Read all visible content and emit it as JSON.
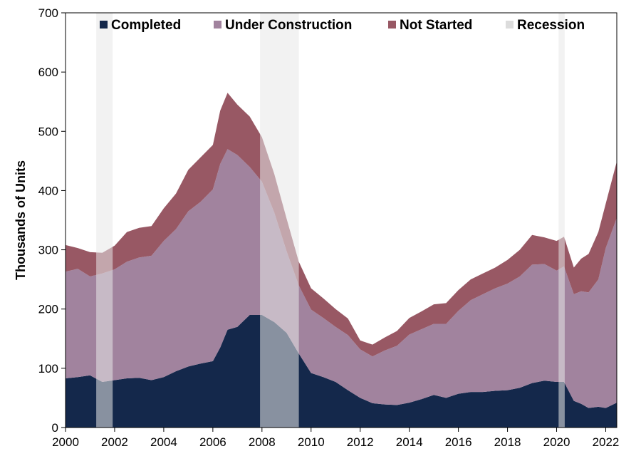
{
  "chart_data": {
    "type": "area",
    "stacked": true,
    "title": "",
    "xlabel": "",
    "ylabel": "Thousands of Units",
    "xlim": [
      2000,
      2022.45
    ],
    "ylim": [
      0,
      700
    ],
    "x_ticks": [
      2000,
      2002,
      2004,
      2006,
      2008,
      2010,
      2012,
      2014,
      2016,
      2018,
      2020,
      2022
    ],
    "y_ticks": [
      0,
      100,
      200,
      300,
      400,
      500,
      600,
      700
    ],
    "grid": false,
    "legend_position": "top",
    "x": [
      2000.0,
      2000.5,
      2001.0,
      2001.5,
      2002.0,
      2002.5,
      2003.0,
      2003.5,
      2004.0,
      2004.5,
      2005.0,
      2005.5,
      2006.0,
      2006.3,
      2006.6,
      2007.0,
      2007.5,
      2008.0,
      2008.5,
      2009.0,
      2009.5,
      2010.0,
      2010.5,
      2011.0,
      2011.5,
      2012.0,
      2012.5,
      2013.0,
      2013.5,
      2014.0,
      2014.5,
      2015.0,
      2015.5,
      2016.0,
      2016.5,
      2017.0,
      2017.5,
      2018.0,
      2018.5,
      2019.0,
      2019.5,
      2020.0,
      2020.3,
      2020.7,
      2021.0,
      2021.3,
      2021.7,
      2022.0,
      2022.45
    ],
    "series": [
      {
        "name": "Completed",
        "color": "#14284b",
        "values": [
          83,
          85,
          88,
          77,
          80,
          83,
          84,
          80,
          85,
          95,
          103,
          108,
          112,
          135,
          165,
          170,
          190,
          190,
          178,
          160,
          125,
          92,
          85,
          77,
          63,
          50,
          41,
          39,
          38,
          42,
          48,
          55,
          50,
          57,
          60,
          60,
          62,
          63,
          67,
          75,
          79,
          77,
          77,
          45,
          40,
          33,
          35,
          33,
          42
        ]
      },
      {
        "name": "Under Construction",
        "color": "#a1839e",
        "values": [
          180,
          183,
          167,
          183,
          187,
          197,
          203,
          210,
          230,
          240,
          262,
          273,
          290,
          310,
          305,
          290,
          250,
          225,
          185,
          138,
          115,
          107,
          100,
          93,
          93,
          82,
          79,
          91,
          100,
          115,
          118,
          120,
          125,
          140,
          155,
          165,
          173,
          180,
          188,
          200,
          197,
          188,
          195,
          180,
          190,
          195,
          215,
          270,
          312
        ]
      },
      {
        "name": "Not Started",
        "color": "#985864",
        "values": [
          45,
          35,
          41,
          35,
          40,
          50,
          50,
          50,
          55,
          60,
          70,
          75,
          75,
          90,
          95,
          85,
          85,
          75,
          65,
          55,
          40,
          36,
          33,
          30,
          28,
          15,
          20,
          22,
          25,
          28,
          30,
          33,
          35,
          35,
          35,
          35,
          35,
          40,
          45,
          50,
          45,
          50,
          50,
          45,
          55,
          65,
          80,
          75,
          95
        ]
      }
    ],
    "recession": {
      "name": "Recession",
      "color": "#e8e8e8",
      "periods": [
        [
          2001.25,
          2001.92
        ],
        [
          2007.92,
          2009.5
        ],
        [
          2020.08,
          2020.33
        ]
      ]
    }
  }
}
